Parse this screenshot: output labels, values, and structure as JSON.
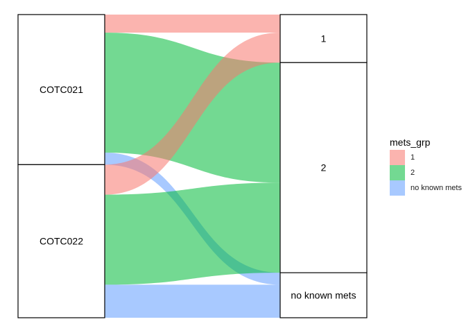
{
  "chart_data": {
    "type": "alluvial",
    "axes": [
      {
        "name": "",
        "strata": [
          "COTC021",
          "COTC022"
        ]
      },
      {
        "name": "",
        "strata": [
          "1",
          "2",
          "no known mets"
        ]
      }
    ],
    "flows": [
      {
        "from": "COTC021",
        "to": "1",
        "group": "1",
        "value": 6
      },
      {
        "from": "COTC021",
        "to": "2",
        "group": "2",
        "value": 40
      },
      {
        "from": "COTC021",
        "to": "no known mets",
        "group": "no known mets",
        "value": 4
      },
      {
        "from": "COTC022",
        "to": "1",
        "group": "1",
        "value": 10
      },
      {
        "from": "COTC022",
        "to": "2",
        "group": "2",
        "value": 30
      },
      {
        "from": "COTC022",
        "to": "no known mets",
        "group": "no known mets",
        "value": 11
      }
    ],
    "legend": {
      "title": "mets_grp",
      "position": "right",
      "entries": [
        {
          "label": "1",
          "color": "#f8766d"
        },
        {
          "label": "2",
          "color": "#00ba38"
        },
        {
          "label": "no known mets",
          "color": "#619cff"
        }
      ]
    },
    "alpha": 0.55,
    "grid": false
  }
}
